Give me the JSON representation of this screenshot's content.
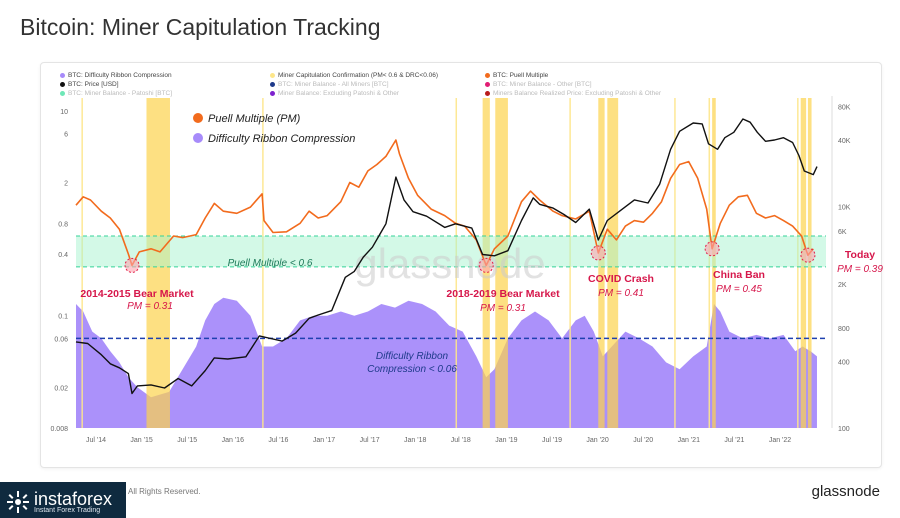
{
  "title": "Bitcoin: Miner Capitulation Tracking",
  "legend": [
    {
      "label": "BTC: Difficulty Ribbon Compression",
      "color": "#a78bfa",
      "dim": false
    },
    {
      "label": "Miner Capitulation Confirmation (PM< 0.6 & DRC<0.06)",
      "color": "#fde68a",
      "dim": false
    },
    {
      "label": "BTC: Puell Multiple",
      "color": "#f26b1d",
      "dim": false
    },
    {
      "label": "BTC: Price [USD]",
      "color": "#111111",
      "dim": false
    },
    {
      "label": "BTC: Miner Balance - All Miners [BTC]",
      "color": "#1e3a8a",
      "dim": true
    },
    {
      "label": "BTC: Miner Balance - Other [BTC]",
      "color": "#e11d74",
      "dim": true
    },
    {
      "label": "BTC: Miner Balance - Patoshi [BTC]",
      "color": "#6ee7b7",
      "dim": true
    },
    {
      "label": "Miner Balance: Excluding Patoshi & Other",
      "color": "#7e22ce",
      "dim": true
    },
    {
      "label": "Miners Balance Realized Price: Excluding Patoshi & Other",
      "color": "#b91c1c",
      "dim": true
    }
  ],
  "inner_legend": {
    "pm": "Puell Multiple (PM)",
    "drc": "Difficulty Ribbon Compression"
  },
  "watermark": "glassnode",
  "zones": {
    "pm_label": "Puell Multiple < 0.6",
    "drc_label_1": "Difficulty Ribbon",
    "drc_label_2": "Compression < 0.06"
  },
  "annotations": [
    {
      "title": "2014-2015  Bear Market",
      "sub": "PM = 0.31"
    },
    {
      "title": "2018-2019 Bear Market",
      "sub": "PM = 0.31"
    },
    {
      "title": "COVID Crash",
      "sub": "PM = 0.41"
    },
    {
      "title": "China Ban",
      "sub": "PM = 0.45"
    },
    {
      "title": "Today",
      "sub": "PM = 0.39"
    }
  ],
  "footer": {
    "brand": "instaforex",
    "brand_sub": "Instant Forex Trading",
    "rights": "All Rights Reserved.",
    "logo": "glassnode"
  },
  "chart_data": {
    "type": "line",
    "x_ticks": [
      "Jul '14",
      "Jan '15",
      "Jul '15",
      "Jan '16",
      "Jul '16",
      "Jan '17",
      "Jul '17",
      "Jan '18",
      "Jul '18",
      "Jan '19",
      "Jul '19",
      "Jan '20",
      "Jul '20",
      "Jan '21",
      "Jul '21",
      "Jan '22"
    ],
    "y_left_ticks": [
      "10",
      "6",
      "2",
      "0.8",
      "0.4",
      "0.1",
      "0.06",
      "0.02",
      "0.008"
    ],
    "y_left_values": [
      10,
      6,
      2,
      0.8,
      0.4,
      0.1,
      0.06,
      0.02,
      0.008
    ],
    "y_right_ticks": [
      "80K",
      "40K",
      "10K",
      "6K",
      "2K",
      "800",
      "400",
      "100"
    ],
    "y_right_values": [
      80000,
      40000,
      10000,
      6000,
      2000,
      800,
      400,
      100
    ],
    "ylim_left": [
      0.008,
      14
    ],
    "ylim_right": [
      100,
      100000
    ],
    "xlim": [
      2014.42,
      2022.72
    ],
    "thresholds": {
      "pm": 0.6,
      "drc": 0.06
    },
    "zone_band": [
      0.3,
      0.6
    ],
    "annotation_points": [
      {
        "x": 2015.04,
        "y": 0.31
      },
      {
        "x": 2018.96,
        "y": 0.31
      },
      {
        "x": 2020.2,
        "y": 0.41
      },
      {
        "x": 2021.46,
        "y": 0.45
      },
      {
        "x": 2022.52,
        "y": 0.39
      }
    ],
    "capitulation_periods": [
      [
        2015.2,
        2015.46
      ],
      [
        2018.92,
        2019.0
      ],
      [
        2019.06,
        2019.2
      ],
      [
        2020.2,
        2020.27
      ],
      [
        2020.3,
        2020.42
      ],
      [
        2021.46,
        2021.5
      ],
      [
        2022.44,
        2022.5
      ],
      [
        2022.52,
        2022.56
      ]
    ],
    "thin_lines": [
      2014.48,
      2016.48,
      2018.62,
      2019.88,
      2021.04,
      2021.42,
      2022.4
    ],
    "series": [
      {
        "name": "BTC: Puell Multiple",
        "axis": "left",
        "color": "#f26b1d",
        "points": [
          [
            2014.42,
            1.2
          ],
          [
            2014.5,
            1.45
          ],
          [
            2014.58,
            1.35
          ],
          [
            2014.7,
            1.05
          ],
          [
            2014.8,
            0.9
          ],
          [
            2014.9,
            0.7
          ],
          [
            2015.0,
            0.4
          ],
          [
            2015.04,
            0.31
          ],
          [
            2015.12,
            0.42
          ],
          [
            2015.25,
            0.45
          ],
          [
            2015.35,
            0.42
          ],
          [
            2015.5,
            0.6
          ],
          [
            2015.6,
            0.58
          ],
          [
            2015.75,
            0.62
          ],
          [
            2015.85,
            0.9
          ],
          [
            2015.95,
            1.25
          ],
          [
            2016.05,
            1.05
          ],
          [
            2016.2,
            1.0
          ],
          [
            2016.35,
            1.15
          ],
          [
            2016.48,
            1.55
          ],
          [
            2016.5,
            0.85
          ],
          [
            2016.6,
            0.65
          ],
          [
            2016.75,
            0.66
          ],
          [
            2016.9,
            0.8
          ],
          [
            2017.0,
            1.05
          ],
          [
            2017.1,
            0.9
          ],
          [
            2017.2,
            0.95
          ],
          [
            2017.35,
            1.3
          ],
          [
            2017.45,
            2.0
          ],
          [
            2017.55,
            1.8
          ],
          [
            2017.65,
            2.6
          ],
          [
            2017.75,
            3.0
          ],
          [
            2017.85,
            3.6
          ],
          [
            2017.96,
            5.2
          ],
          [
            2018.0,
            3.8
          ],
          [
            2018.1,
            2.2
          ],
          [
            2018.2,
            1.5
          ],
          [
            2018.35,
            1.1
          ],
          [
            2018.5,
            0.95
          ],
          [
            2018.62,
            0.8
          ],
          [
            2018.72,
            0.75
          ],
          [
            2018.85,
            0.55
          ],
          [
            2018.96,
            0.31
          ],
          [
            2019.05,
            0.45
          ],
          [
            2019.2,
            0.6
          ],
          [
            2019.35,
            1.3
          ],
          [
            2019.45,
            1.65
          ],
          [
            2019.55,
            1.35
          ],
          [
            2019.7,
            1.05
          ],
          [
            2019.8,
            0.95
          ],
          [
            2019.95,
            0.88
          ],
          [
            2020.1,
            1.05
          ],
          [
            2020.2,
            0.41
          ],
          [
            2020.3,
            0.7
          ],
          [
            2020.4,
            0.55
          ],
          [
            2020.5,
            0.75
          ],
          [
            2020.6,
            0.85
          ],
          [
            2020.7,
            0.82
          ],
          [
            2020.8,
            1.0
          ],
          [
            2020.9,
            1.3
          ],
          [
            2021.0,
            2.2
          ],
          [
            2021.1,
            3.0
          ],
          [
            2021.2,
            3.2
          ],
          [
            2021.3,
            2.2
          ],
          [
            2021.4,
            1.1
          ],
          [
            2021.46,
            0.45
          ],
          [
            2021.55,
            0.8
          ],
          [
            2021.65,
            1.2
          ],
          [
            2021.75,
            1.45
          ],
          [
            2021.85,
            1.5
          ],
          [
            2021.95,
            1.0
          ],
          [
            2022.05,
            0.9
          ],
          [
            2022.15,
            0.95
          ],
          [
            2022.25,
            0.85
          ],
          [
            2022.35,
            0.75
          ],
          [
            2022.45,
            0.6
          ],
          [
            2022.52,
            0.39
          ],
          [
            2022.58,
            0.45
          ]
        ]
      },
      {
        "name": "BTC: Price [USD]",
        "axis": "right",
        "color": "#111111",
        "points": [
          [
            2014.42,
            600
          ],
          [
            2014.55,
            580
          ],
          [
            2014.7,
            460
          ],
          [
            2014.8,
            380
          ],
          [
            2014.9,
            350
          ],
          [
            2015.0,
            310
          ],
          [
            2015.04,
            205
          ],
          [
            2015.1,
            240
          ],
          [
            2015.25,
            245
          ],
          [
            2015.4,
            230
          ],
          [
            2015.55,
            280
          ],
          [
            2015.7,
            240
          ],
          [
            2015.85,
            330
          ],
          [
            2015.95,
            430
          ],
          [
            2016.1,
            420
          ],
          [
            2016.3,
            440
          ],
          [
            2016.45,
            680
          ],
          [
            2016.55,
            650
          ],
          [
            2016.7,
            610
          ],
          [
            2016.85,
            720
          ],
          [
            2017.0,
            980
          ],
          [
            2017.1,
            1050
          ],
          [
            2017.25,
            1150
          ],
          [
            2017.4,
            2300
          ],
          [
            2017.5,
            2600
          ],
          [
            2017.6,
            3500
          ],
          [
            2017.7,
            4300
          ],
          [
            2017.85,
            7000
          ],
          [
            2017.96,
            18500
          ],
          [
            2018.05,
            11500
          ],
          [
            2018.15,
            9000
          ],
          [
            2018.3,
            8200
          ],
          [
            2018.5,
            6500
          ],
          [
            2018.62,
            7000
          ],
          [
            2018.8,
            6400
          ],
          [
            2018.92,
            3700
          ],
          [
            2019.05,
            3600
          ],
          [
            2019.2,
            4000
          ],
          [
            2019.35,
            7500
          ],
          [
            2019.48,
            12000
          ],
          [
            2019.55,
            10500
          ],
          [
            2019.7,
            9700
          ],
          [
            2019.82,
            8500
          ],
          [
            2019.95,
            7200
          ],
          [
            2020.1,
            9500
          ],
          [
            2020.2,
            5000
          ],
          [
            2020.3,
            7500
          ],
          [
            2020.45,
            9300
          ],
          [
            2020.6,
            11500
          ],
          [
            2020.75,
            10800
          ],
          [
            2020.88,
            16000
          ],
          [
            2021.0,
            33000
          ],
          [
            2021.1,
            48000
          ],
          [
            2021.25,
            57000
          ],
          [
            2021.35,
            56000
          ],
          [
            2021.42,
            37000
          ],
          [
            2021.52,
            33000
          ],
          [
            2021.6,
            42000
          ],
          [
            2021.7,
            47000
          ],
          [
            2021.8,
            62000
          ],
          [
            2021.88,
            58000
          ],
          [
            2021.96,
            47000
          ],
          [
            2022.05,
            39000
          ],
          [
            2022.15,
            40000
          ],
          [
            2022.25,
            42000
          ],
          [
            2022.35,
            38000
          ],
          [
            2022.42,
            29000
          ],
          [
            2022.48,
            21000
          ],
          [
            2022.58,
            19500
          ],
          [
            2022.62,
            23000
          ]
        ]
      },
      {
        "name": "BTC: Difficulty Ribbon Compression",
        "axis": "left",
        "color": "#a78bfa",
        "points": [
          [
            2014.42,
            0.13
          ],
          [
            2014.5,
            0.11
          ],
          [
            2014.6,
            0.07
          ],
          [
            2014.7,
            0.06
          ],
          [
            2014.8,
            0.045
          ],
          [
            2014.9,
            0.035
          ],
          [
            2015.0,
            0.025
          ],
          [
            2015.1,
            0.02
          ],
          [
            2015.25,
            0.016
          ],
          [
            2015.45,
            0.018
          ],
          [
            2015.6,
            0.03
          ],
          [
            2015.75,
            0.05
          ],
          [
            2015.85,
            0.09
          ],
          [
            2015.95,
            0.13
          ],
          [
            2016.05,
            0.15
          ],
          [
            2016.2,
            0.14
          ],
          [
            2016.35,
            0.1
          ],
          [
            2016.48,
            0.05
          ],
          [
            2016.6,
            0.05
          ],
          [
            2016.75,
            0.06
          ],
          [
            2016.9,
            0.09
          ],
          [
            2017.05,
            0.1
          ],
          [
            2017.2,
            0.1
          ],
          [
            2017.35,
            0.11
          ],
          [
            2017.5,
            0.1
          ],
          [
            2017.65,
            0.11
          ],
          [
            2017.8,
            0.13
          ],
          [
            2017.95,
            0.12
          ],
          [
            2018.1,
            0.14
          ],
          [
            2018.25,
            0.13
          ],
          [
            2018.4,
            0.11
          ],
          [
            2018.55,
            0.08
          ],
          [
            2018.7,
            0.07
          ],
          [
            2018.85,
            0.04
          ],
          [
            2018.96,
            0.025
          ],
          [
            2019.05,
            0.03
          ],
          [
            2019.2,
            0.06
          ],
          [
            2019.35,
            0.09
          ],
          [
            2019.5,
            0.11
          ],
          [
            2019.65,
            0.09
          ],
          [
            2019.8,
            0.06
          ],
          [
            2019.95,
            0.09
          ],
          [
            2020.05,
            0.1
          ],
          [
            2020.15,
            0.07
          ],
          [
            2020.25,
            0.04
          ],
          [
            2020.35,
            0.05
          ],
          [
            2020.5,
            0.07
          ],
          [
            2020.65,
            0.06
          ],
          [
            2020.8,
            0.05
          ],
          [
            2020.95,
            0.035
          ],
          [
            2021.1,
            0.03
          ],
          [
            2021.25,
            0.04
          ],
          [
            2021.4,
            0.05
          ],
          [
            2021.48,
            0.13
          ],
          [
            2021.55,
            0.11
          ],
          [
            2021.65,
            0.07
          ],
          [
            2021.8,
            0.06
          ],
          [
            2021.95,
            0.065
          ],
          [
            2022.1,
            0.06
          ],
          [
            2022.25,
            0.065
          ],
          [
            2022.38,
            0.045
          ],
          [
            2022.46,
            0.05
          ],
          [
            2022.55,
            0.045
          ],
          [
            2022.62,
            0.04
          ]
        ]
      }
    ]
  }
}
